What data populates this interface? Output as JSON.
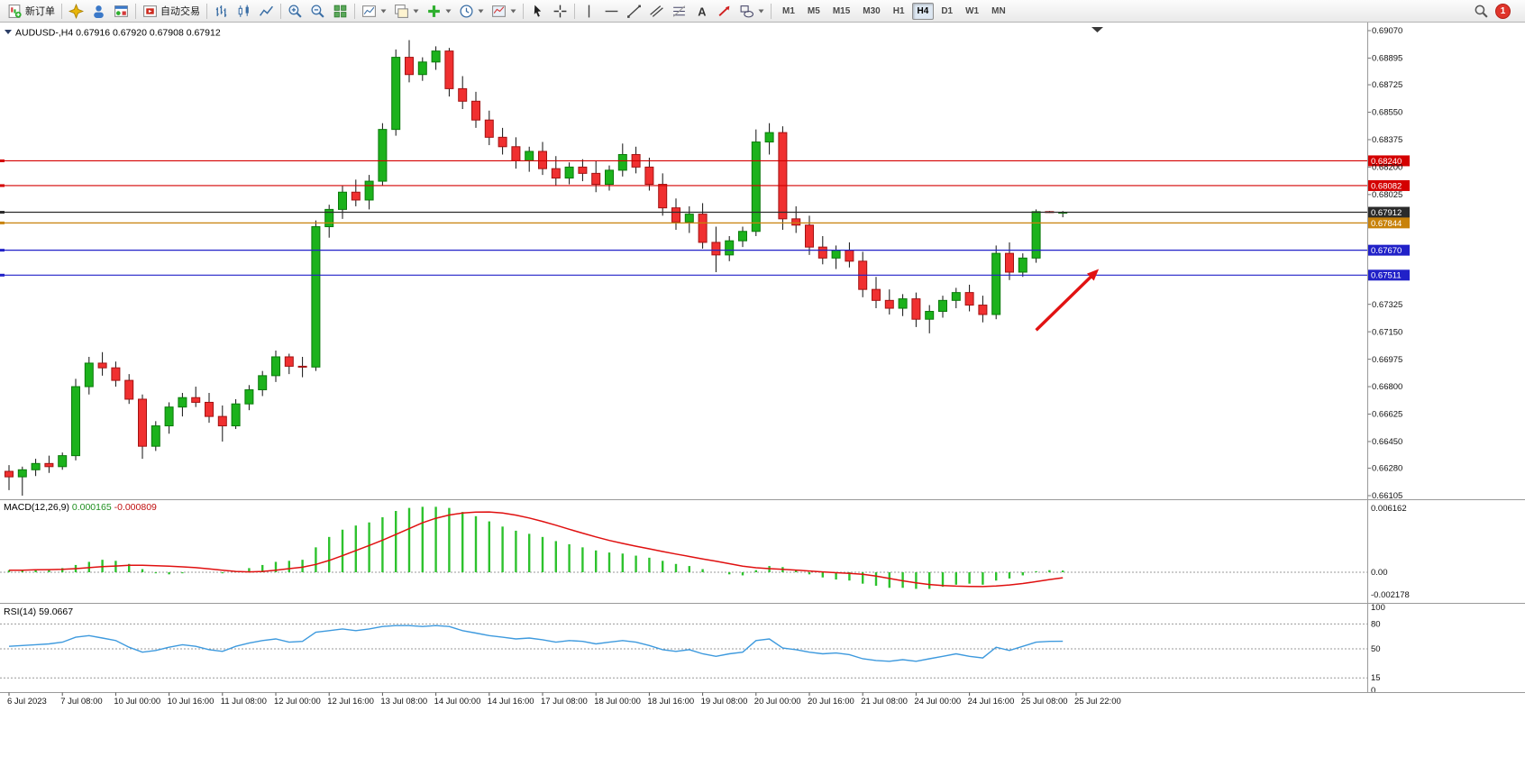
{
  "toolbar": {
    "new_order": "新订单",
    "autotrading": "自动交易",
    "timeframes": [
      "M1",
      "M5",
      "M15",
      "M30",
      "H1",
      "H4",
      "D1",
      "W1",
      "MN"
    ],
    "active_timeframe": "H4",
    "notification_count": "1"
  },
  "chart_data": {
    "type": "candlestick",
    "symbol": "AUDUSD-",
    "timeframe": "H4",
    "title": "AUDUSD-,H4 0.67916 0.67920 0.67908 0.67912",
    "ohlc_current": {
      "open": "0.67916",
      "high": "0.67920",
      "low": "0.67908",
      "close": "0.67912"
    },
    "ylim": [
      0.66105,
      0.6907
    ],
    "price_axis_ticks": [
      "0.69070",
      "0.68895",
      "0.68725",
      "0.68550",
      "0.68375",
      "0.68200",
      "0.68025",
      "0.67325",
      "0.67150",
      "0.66975",
      "0.66800",
      "0.66625",
      "0.66450",
      "0.66280",
      "0.66105"
    ],
    "time_labels": [
      "6 Jul 2023",
      "7 Jul 08:00",
      "10 Jul 00:00",
      "10 Jul 16:00",
      "11 Jul 08:00",
      "12 Jul 00:00",
      "12 Jul 16:00",
      "13 Jul 08:00",
      "14 Jul 00:00",
      "14 Jul 16:00",
      "17 Jul 08:00",
      "18 Jul 00:00",
      "18 Jul 16:00",
      "19 Jul 08:00",
      "20 Jul 00:00",
      "20 Jul 16:00",
      "21 Jul 08:00",
      "24 Jul 00:00",
      "24 Jul 16:00",
      "25 Jul 08:00",
      "25 Jul 22:00"
    ],
    "time_label_step": 4,
    "candles": [
      [
        0.6626,
        0.663,
        0.6614,
        0.66225
      ],
      [
        0.66225,
        0.6629,
        0.66105,
        0.6627
      ],
      [
        0.6627,
        0.6634,
        0.6623,
        0.6631
      ],
      [
        0.6631,
        0.6636,
        0.6625,
        0.6629
      ],
      [
        0.6629,
        0.6638,
        0.6627,
        0.6636
      ],
      [
        0.6636,
        0.6685,
        0.6633,
        0.668
      ],
      [
        0.668,
        0.6699,
        0.6675,
        0.6695
      ],
      [
        0.6695,
        0.6702,
        0.6687,
        0.6692
      ],
      [
        0.6692,
        0.6696,
        0.668,
        0.6684
      ],
      [
        0.6684,
        0.6688,
        0.6669,
        0.6672
      ],
      [
        0.6672,
        0.6675,
        0.6634,
        0.6642
      ],
      [
        0.6642,
        0.6658,
        0.6639,
        0.6655
      ],
      [
        0.6655,
        0.667,
        0.665,
        0.6667
      ],
      [
        0.6667,
        0.6676,
        0.6661,
        0.6673
      ],
      [
        0.6673,
        0.668,
        0.6667,
        0.667
      ],
      [
        0.667,
        0.6676,
        0.6657,
        0.6661
      ],
      [
        0.6661,
        0.6668,
        0.6645,
        0.6655
      ],
      [
        0.6655,
        0.6672,
        0.6653,
        0.6669
      ],
      [
        0.6669,
        0.6681,
        0.6665,
        0.6678
      ],
      [
        0.6678,
        0.669,
        0.6674,
        0.6687
      ],
      [
        0.6687,
        0.6703,
        0.6683,
        0.6699
      ],
      [
        0.6699,
        0.6701,
        0.6688,
        0.6693
      ],
      [
        0.6693,
        0.6699,
        0.6686,
        0.66925
      ],
      [
        0.66925,
        0.6786,
        0.669,
        0.6782
      ],
      [
        0.6782,
        0.6796,
        0.6775,
        0.6793
      ],
      [
        0.6793,
        0.6808,
        0.6787,
        0.6804
      ],
      [
        0.6804,
        0.6812,
        0.6795,
        0.6799
      ],
      [
        0.6799,
        0.6815,
        0.6793,
        0.6811
      ],
      [
        0.6811,
        0.6848,
        0.6808,
        0.6844
      ],
      [
        0.6844,
        0.6895,
        0.684,
        0.689
      ],
      [
        0.689,
        0.6901,
        0.6874,
        0.6879
      ],
      [
        0.6879,
        0.689,
        0.6875,
        0.6887
      ],
      [
        0.6887,
        0.6897,
        0.6882,
        0.6894
      ],
      [
        0.6894,
        0.6896,
        0.6865,
        0.687
      ],
      [
        0.687,
        0.6878,
        0.6857,
        0.6862
      ],
      [
        0.6862,
        0.6868,
        0.6845,
        0.685
      ],
      [
        0.685,
        0.6856,
        0.6834,
        0.6839
      ],
      [
        0.6839,
        0.6845,
        0.6828,
        0.6833
      ],
      [
        0.6833,
        0.6839,
        0.6819,
        0.6824
      ],
      [
        0.6824,
        0.6833,
        0.6817,
        0.683
      ],
      [
        0.683,
        0.6836,
        0.6815,
        0.6819
      ],
      [
        0.6819,
        0.6827,
        0.6808,
        0.6813
      ],
      [
        0.6813,
        0.6823,
        0.6809,
        0.682
      ],
      [
        0.682,
        0.6825,
        0.6811,
        0.6816
      ],
      [
        0.6816,
        0.6824,
        0.6804,
        0.6809
      ],
      [
        0.6809,
        0.6821,
        0.6805,
        0.6818
      ],
      [
        0.6818,
        0.6835,
        0.6814,
        0.6828
      ],
      [
        0.6828,
        0.6833,
        0.6816,
        0.682
      ],
      [
        0.682,
        0.6826,
        0.6805,
        0.6809
      ],
      [
        0.6809,
        0.6816,
        0.6789,
        0.6794
      ],
      [
        0.6794,
        0.68,
        0.678,
        0.6785
      ],
      [
        0.6785,
        0.6795,
        0.6778,
        0.679
      ],
      [
        0.679,
        0.6797,
        0.6768,
        0.6772
      ],
      [
        0.6772,
        0.6782,
        0.6753,
        0.6764
      ],
      [
        0.6764,
        0.6776,
        0.676,
        0.6773
      ],
      [
        0.6773,
        0.6782,
        0.6769,
        0.6779
      ],
      [
        0.6779,
        0.6844,
        0.6776,
        0.6836
      ],
      [
        0.6836,
        0.6848,
        0.6828,
        0.6842
      ],
      [
        0.6842,
        0.6846,
        0.678,
        0.6787
      ],
      [
        0.6787,
        0.6795,
        0.6778,
        0.6783
      ],
      [
        0.6783,
        0.6789,
        0.6764,
        0.6769
      ],
      [
        0.6769,
        0.6776,
        0.6758,
        0.6762
      ],
      [
        0.6762,
        0.677,
        0.6755,
        0.6767
      ],
      [
        0.6767,
        0.6772,
        0.6756,
        0.676
      ],
      [
        0.676,
        0.6766,
        0.6737,
        0.6742
      ],
      [
        0.6742,
        0.675,
        0.673,
        0.6735
      ],
      [
        0.6735,
        0.6742,
        0.6726,
        0.673
      ],
      [
        0.673,
        0.6739,
        0.6725,
        0.6736
      ],
      [
        0.6736,
        0.674,
        0.6718,
        0.6723
      ],
      [
        0.6723,
        0.6732,
        0.6714,
        0.6728
      ],
      [
        0.6728,
        0.6738,
        0.6724,
        0.6735
      ],
      [
        0.6735,
        0.6743,
        0.673,
        0.674
      ],
      [
        0.674,
        0.6745,
        0.6728,
        0.6732
      ],
      [
        0.6732,
        0.6738,
        0.6721,
        0.6726
      ],
      [
        0.6726,
        0.677,
        0.6723,
        0.6765
      ],
      [
        0.6765,
        0.6772,
        0.6748,
        0.6753
      ],
      [
        0.6753,
        0.6765,
        0.675,
        0.6762
      ],
      [
        0.6762,
        0.6793,
        0.6759,
        0.67916
      ],
      [
        0.67916,
        0.6792,
        0.67908,
        0.67912
      ],
      [
        0.67912,
        0.6792,
        0.6788,
        0.67912
      ]
    ],
    "hlines": [
      {
        "price": 0.6824,
        "label": "0.68240",
        "color": "#D40000",
        "type": "resistance-line"
      },
      {
        "price": 0.68082,
        "label": "0.68082",
        "color": "#D40000",
        "type": "resistance-line"
      },
      {
        "price": 0.67912,
        "label": "0.67912",
        "color": "#2b2b2b",
        "type": "current-price-line"
      },
      {
        "price": 0.67844,
        "label": "0.67844",
        "color": "#C8820A",
        "type": "pivot-line"
      },
      {
        "price": 0.6767,
        "label": "0.67670",
        "color": "#2121C8",
        "type": "support-line"
      },
      {
        "price": 0.67511,
        "label": "0.67511",
        "color": "#2121C8",
        "type": "support-line"
      }
    ],
    "indicators": {
      "macd": {
        "label": "MACD(12,26,9)",
        "value_main": "0.000165",
        "value_signal": "-0.000809",
        "axis_ticks": [
          "0.006162",
          "0.00",
          "-0.002178"
        ],
        "ylim": [
          -0.002178,
          0.006162
        ],
        "signal_period": 9,
        "colors": {
          "hist": "#2DC22D",
          "signal": "#E01010"
        },
        "hist": [
          0.0002,
          0.0002,
          0.0003,
          0.0003,
          0.0004,
          0.0007,
          0.001,
          0.0012,
          0.0011,
          0.0008,
          0.0003,
          -0.0001,
          -0.0002,
          -0.0001,
          0.0,
          0.0,
          -0.0001,
          0.0001,
          0.0004,
          0.0007,
          0.001,
          0.0011,
          0.0012,
          0.0024,
          0.0034,
          0.0041,
          0.0045,
          0.0048,
          0.0053,
          0.0059,
          0.0062,
          0.0063,
          0.0063,
          0.0062,
          0.0058,
          0.0054,
          0.0049,
          0.0044,
          0.004,
          0.0037,
          0.0034,
          0.003,
          0.0027,
          0.0024,
          0.0021,
          0.0019,
          0.0018,
          0.0016,
          0.0014,
          0.0011,
          0.0008,
          0.0006,
          0.0003,
          0.0,
          -0.0002,
          -0.0003,
          0.0002,
          0.0006,
          0.0005,
          0.0002,
          -0.0002,
          -0.0005,
          -0.0007,
          -0.0008,
          -0.0011,
          -0.0013,
          -0.0015,
          -0.0015,
          -0.0016,
          -0.0016,
          -0.0014,
          -0.0012,
          -0.0011,
          -0.0012,
          -0.0008,
          -0.0006,
          -0.0003,
          0.0001,
          0.0002,
          0.000165
        ]
      },
      "rsi": {
        "label": "RSI(14)",
        "value": "59.0667",
        "axis_ticks": [
          "100",
          "80",
          "50",
          "15",
          "0"
        ],
        "levels": [
          80,
          50,
          15
        ],
        "color": "#3E9ADE",
        "values": [
          53,
          54,
          55,
          56,
          58,
          64,
          66,
          63,
          60,
          52,
          46,
          48,
          52,
          55,
          53,
          49,
          47,
          53,
          57,
          60,
          62,
          58,
          59,
          70,
          72,
          74,
          72,
          74,
          77,
          78,
          78,
          77,
          78,
          77,
          72,
          69,
          66,
          64,
          62,
          63,
          61,
          58,
          60,
          59,
          56,
          58,
          60,
          58,
          54,
          49,
          47,
          49,
          44,
          41,
          44,
          46,
          60,
          62,
          51,
          49,
          46,
          44,
          45,
          43,
          38,
          36,
          35,
          37,
          35,
          38,
          41,
          44,
          41,
          39,
          52,
          48,
          53,
          58,
          59,
          59.1
        ]
      }
    },
    "annotations": [
      {
        "type": "arrow",
        "color": "#E11212",
        "from_index": 77,
        "from_price": 0.6716,
        "to_index": 81.7,
        "to_price": 0.6755
      }
    ],
    "colors": {
      "up": "#1CB21C",
      "up_border": "#0B7A0B",
      "down": "#F03030",
      "down_border": "#A31212",
      "wick": "#111111",
      "background": "#FFFFFF"
    }
  }
}
